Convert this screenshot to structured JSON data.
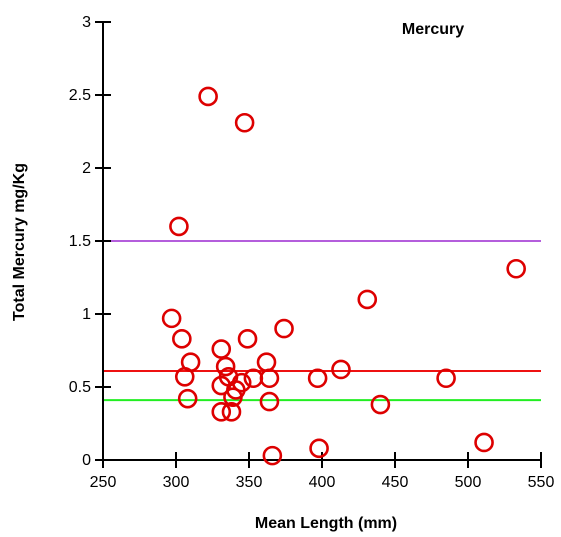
{
  "chart_data": {
    "type": "scatter",
    "title": "Mercury",
    "xlabel": "Mean Length (mm)",
    "ylabel": "Total Mercury mg/Kg",
    "xlim": [
      250,
      550
    ],
    "ylim": [
      0,
      3
    ],
    "xticks": [
      250,
      300,
      350,
      400,
      450,
      500,
      550
    ],
    "yticks": [
      0,
      0.5,
      1,
      1.5,
      2,
      2.5,
      3
    ],
    "xtick_labels": [
      "250",
      "300",
      "350",
      "400",
      "450",
      "500",
      "550"
    ],
    "ytick_labels": [
      "0",
      "0.5",
      "1",
      "1.5",
      "2",
      "2.5",
      "3"
    ],
    "grid": false,
    "marker": "open-circle",
    "marker_color": "#dd0000",
    "points": [
      {
        "x": 322,
        "y": 2.49
      },
      {
        "x": 347,
        "y": 2.31
      },
      {
        "x": 302,
        "y": 1.6
      },
      {
        "x": 533,
        "y": 1.31
      },
      {
        "x": 431,
        "y": 1.1
      },
      {
        "x": 297,
        "y": 0.97
      },
      {
        "x": 374,
        "y": 0.9
      },
      {
        "x": 304,
        "y": 0.83
      },
      {
        "x": 349,
        "y": 0.83
      },
      {
        "x": 331,
        "y": 0.76
      },
      {
        "x": 310,
        "y": 0.67
      },
      {
        "x": 362,
        "y": 0.67
      },
      {
        "x": 334,
        "y": 0.64
      },
      {
        "x": 413,
        "y": 0.62
      },
      {
        "x": 306,
        "y": 0.57
      },
      {
        "x": 336,
        "y": 0.57
      },
      {
        "x": 353,
        "y": 0.56
      },
      {
        "x": 364,
        "y": 0.56
      },
      {
        "x": 397,
        "y": 0.56
      },
      {
        "x": 485,
        "y": 0.56
      },
      {
        "x": 345,
        "y": 0.53
      },
      {
        "x": 331,
        "y": 0.51
      },
      {
        "x": 341,
        "y": 0.48
      },
      {
        "x": 339,
        "y": 0.43
      },
      {
        "x": 308,
        "y": 0.42
      },
      {
        "x": 364,
        "y": 0.4
      },
      {
        "x": 440,
        "y": 0.38
      },
      {
        "x": 331,
        "y": 0.33
      },
      {
        "x": 338,
        "y": 0.33
      },
      {
        "x": 511,
        "y": 0.12
      },
      {
        "x": 398,
        "y": 0.08
      },
      {
        "x": 366,
        "y": 0.03
      }
    ],
    "reference_lines": [
      {
        "y": 1.5,
        "color": "#b45edc"
      },
      {
        "y": 0.61,
        "color": "#ee1111"
      },
      {
        "y": 0.41,
        "color": "#22ee22"
      }
    ]
  }
}
